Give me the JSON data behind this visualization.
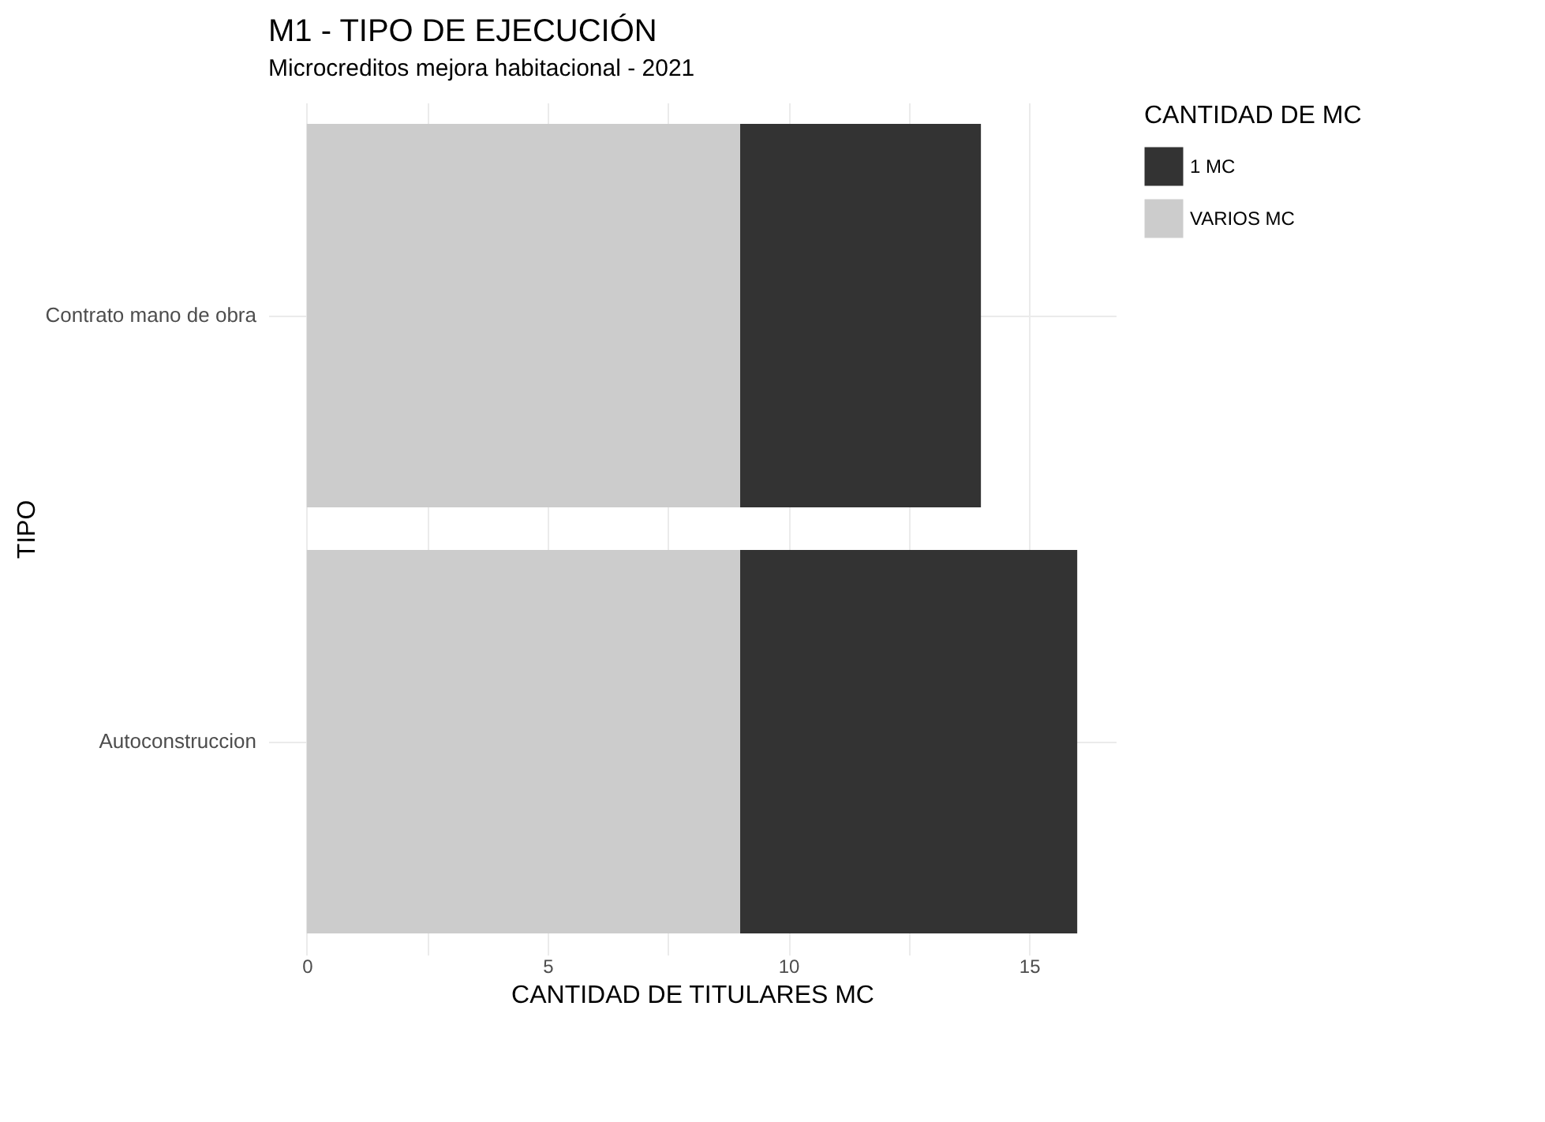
{
  "chart_data": {
    "type": "bar",
    "orientation": "horizontal",
    "stacked": true,
    "title": "M1 - TIPO DE EJECUCIÓN",
    "subtitle": "Microcreditos mejora habitacional - 2021",
    "xlabel": "CANTIDAD DE TITULARES MC",
    "ylabel": "TIPO",
    "legend_title": "CANTIDAD DE MC",
    "legend": "right",
    "grid": true,
    "categories": [
      "Contrato mano de obra",
      "Autoconstruccion"
    ],
    "series": [
      {
        "name": "VARIOS MC",
        "color": "#cccccc",
        "values": [
          9,
          9
        ]
      },
      {
        "name": "1 MC",
        "color": "#333333",
        "values": [
          5,
          7
        ]
      }
    ],
    "xlim": [
      -0.8,
      16.8
    ],
    "xticks": [
      0,
      {
        "value": 2.5,
        "label": null
      },
      5,
      {
        "value": 7.5,
        "label": null
      },
      10,
      {
        "value": 12.5,
        "label": null
      },
      15
    ]
  }
}
